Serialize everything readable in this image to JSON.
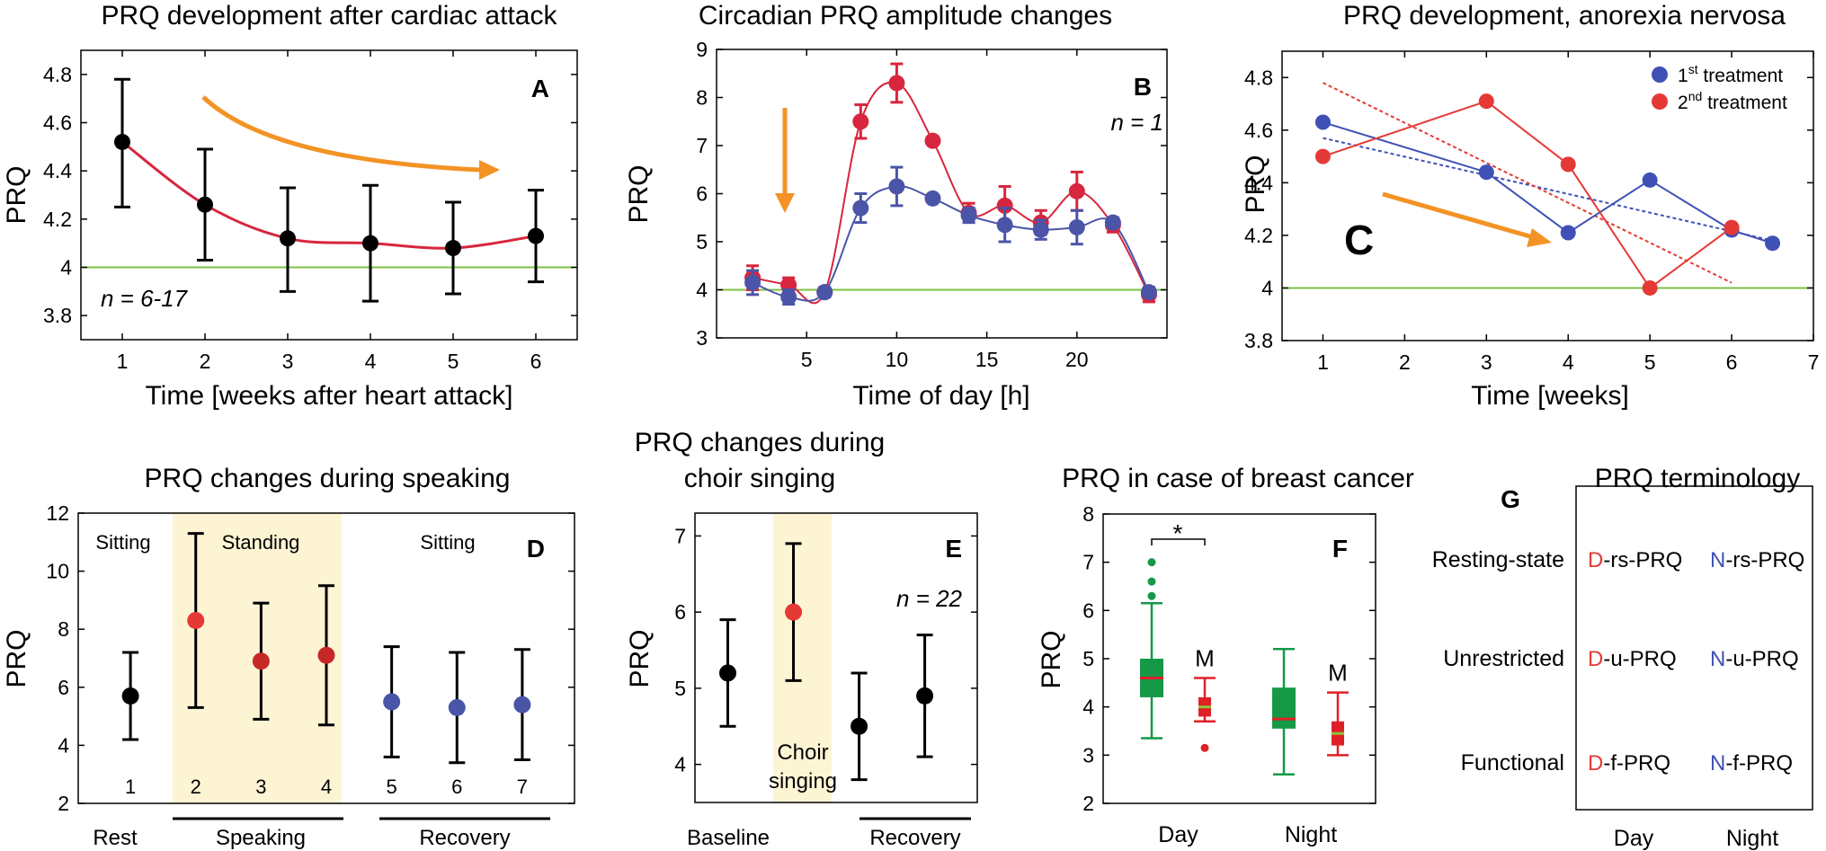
{
  "figure": {
    "title": "PRQ multi-panel figure"
  },
  "chart_data": [
    {
      "id": "A",
      "type": "line",
      "title": "PRQ development after cardiac attack",
      "panel_letter": "A",
      "xlabel": "Time [weeks after heart attack]",
      "ylabel": "PRQ",
      "xlim": [
        0.5,
        6.5
      ],
      "ylim": [
        3.7,
        4.9
      ],
      "xticks": [
        1,
        2,
        3,
        4,
        5,
        6
      ],
      "xtick_labels": [
        "1",
        "2",
        "3",
        "4",
        "5",
        "6"
      ],
      "yticks": [
        3.8,
        4,
        4.2,
        4.4,
        4.6,
        4.8
      ],
      "ytick_labels": [
        "3.8",
        "4",
        "4.2",
        "4.4",
        "4.6",
        "4.8"
      ],
      "baseline": 4,
      "x": [
        1,
        2,
        3,
        4,
        5,
        6
      ],
      "y": [
        4.52,
        4.26,
        4.12,
        4.1,
        4.08,
        4.13
      ],
      "err_low": [
        4.25,
        4.03,
        3.9,
        3.86,
        3.89,
        3.94
      ],
      "err_high": [
        4.78,
        4.49,
        4.33,
        4.34,
        4.27,
        4.32
      ],
      "annotation": "n = 6-17"
    },
    {
      "id": "B",
      "type": "line",
      "title": "Circadian PRQ amplitude changes",
      "panel_letter": "B",
      "xlabel": "Time of day [h]",
      "ylabel": "PRQ",
      "xlim": [
        0,
        25
      ],
      "ylim": [
        3,
        9
      ],
      "xticks": [
        5,
        10,
        15,
        20
      ],
      "xtick_labels": [
        "5",
        "10",
        "15",
        "20"
      ],
      "yticks": [
        3,
        4,
        5,
        6,
        7,
        8,
        9
      ],
      "ytick_labels": [
        "3",
        "4",
        "5",
        "6",
        "7",
        "8",
        "9"
      ],
      "baseline": 4,
      "annotation": "n = 1",
      "series": [
        {
          "name": "red",
          "color": "#d7263d",
          "x": [
            2,
            4,
            6,
            8,
            10,
            12,
            14,
            16,
            18,
            20,
            22,
            24
          ],
          "y": [
            4.25,
            4.1,
            3.95,
            7.5,
            8.3,
            7.1,
            5.6,
            5.75,
            5.4,
            6.05,
            5.35,
            3.9
          ],
          "err": [
            0.25,
            0.15,
            0.1,
            0.35,
            0.4,
            0,
            0.2,
            0.4,
            0.25,
            0.4,
            0.15,
            0.15
          ]
        },
        {
          "name": "blue",
          "color": "#4a55a8",
          "x": [
            2,
            4,
            6,
            8,
            10,
            12,
            14,
            16,
            18,
            20,
            22,
            24
          ],
          "y": [
            4.15,
            3.85,
            3.95,
            5.7,
            6.15,
            5.9,
            5.55,
            5.35,
            5.25,
            5.3,
            5.4,
            3.95
          ],
          "err": [
            0.25,
            0.15,
            0.1,
            0.3,
            0.4,
            0,
            0.15,
            0.35,
            0.2,
            0.35,
            0.1,
            0.1
          ]
        }
      ]
    },
    {
      "id": "C",
      "type": "line",
      "title": "PRQ development, anorexia nervosa",
      "panel_letter": "C",
      "xlabel": "Time [weeks]",
      "ylabel": "PRQ",
      "xlim": [
        0.5,
        7
      ],
      "ylim": [
        3.8,
        4.9
      ],
      "xticks": [
        1,
        2,
        3,
        4,
        5,
        6,
        7
      ],
      "xtick_labels": [
        "1",
        "2",
        "3",
        "4",
        "5",
        "6",
        "7"
      ],
      "yticks": [
        3.8,
        4,
        4.2,
        4.4,
        4.6,
        4.8
      ],
      "ytick_labels": [
        "3.8",
        "4",
        "4.2",
        "4.4",
        "4.6",
        "4.8"
      ],
      "baseline": 4,
      "legend": {
        "position": "top-right",
        "entries": [
          {
            "label": "1",
            "sup": "st",
            "rest": " treatment",
            "color": "#3f51b5"
          },
          {
            "label": "2",
            "sup": "nd",
            "rest": " treatment",
            "color": "#e53935"
          }
        ]
      },
      "series": [
        {
          "name": "1st treatment",
          "color": "#3f51b5",
          "x": [
            1,
            3,
            4,
            5,
            6,
            6.5
          ],
          "y": [
            4.63,
            4.44,
            4.21,
            4.41,
            4.22,
            4.17
          ]
        },
        {
          "name": "2nd treatment",
          "color": "#e53935",
          "x": [
            1,
            3,
            4,
            5,
            6
          ],
          "y": [
            4.5,
            4.71,
            4.47,
            4.0,
            4.23
          ]
        }
      ],
      "trendlines": [
        {
          "color": "#3f51b5",
          "x": [
            1,
            6.5
          ],
          "y": [
            4.57,
            4.18
          ]
        },
        {
          "color": "#e53935",
          "x": [
            1,
            6
          ],
          "y": [
            4.78,
            4.02
          ]
        }
      ]
    },
    {
      "id": "D",
      "type": "scatter",
      "title": "PRQ changes during speaking",
      "panel_letter": "D",
      "xlabel": "",
      "ylabel": "PRQ",
      "xlim": [
        0.2,
        7.8
      ],
      "ylim": [
        2,
        12
      ],
      "yticks": [
        2,
        4,
        6,
        8,
        10,
        12
      ],
      "ytick_labels": [
        "2",
        "4",
        "6",
        "8",
        "10",
        "12"
      ],
      "x": [
        1,
        2,
        3,
        4,
        5,
        6,
        7
      ],
      "point_labels": [
        "1",
        "2",
        "3",
        "4",
        "5",
        "6",
        "7"
      ],
      "y": [
        5.7,
        8.3,
        6.9,
        7.1,
        5.5,
        5.3,
        5.4
      ],
      "err_low": [
        4.2,
        5.3,
        4.9,
        4.7,
        3.6,
        3.4,
        3.5
      ],
      "err_high": [
        7.2,
        11.3,
        8.9,
        9.5,
        7.4,
        7.2,
        7.3
      ],
      "colors": [
        "#000000",
        "#e53935",
        "#c62828",
        "#c62828",
        "#4a55a8",
        "#4a55a8",
        "#4a55a8"
      ],
      "region_labels": [
        "Sitting",
        "Standing",
        "Sitting"
      ],
      "group_labels": [
        "Rest",
        "Speaking",
        "Recovery"
      ]
    },
    {
      "id": "E",
      "type": "scatter",
      "title_line1": "PRQ changes during",
      "title_line2": "choir singing",
      "panel_letter": "E",
      "xlabel": "",
      "ylabel": "PRQ",
      "xlim": [
        0.5,
        4.8
      ],
      "ylim": [
        3.5,
        7.3
      ],
      "yticks": [
        4,
        5,
        6,
        7
      ],
      "ytick_labels": [
        "4",
        "5",
        "6",
        "7"
      ],
      "x": [
        1,
        2,
        3,
        4
      ],
      "y": [
        5.2,
        6.0,
        4.5,
        4.9
      ],
      "err_low": [
        4.5,
        5.1,
        3.8,
        4.1
      ],
      "err_high": [
        5.9,
        6.9,
        5.2,
        5.7
      ],
      "colors": [
        "#000000",
        "#e53935",
        "#000000",
        "#000000"
      ],
      "annotation": "n = 22",
      "highlight_line1": "Choir",
      "highlight_line2": "singing",
      "group_labels": [
        "Baseline",
        "Recovery"
      ]
    },
    {
      "id": "F",
      "type": "box",
      "title": "PRQ in case of breast cancer",
      "panel_letter": "F",
      "xlabel": "",
      "ylabel": "PRQ",
      "ylim": [
        2,
        8
      ],
      "yticks": [
        2,
        3,
        4,
        5,
        6,
        7,
        8
      ],
      "ytick_labels": [
        "2",
        "3",
        "4",
        "5",
        "6",
        "7",
        "8"
      ],
      "categories": [
        "Day",
        "Night"
      ],
      "significance": "*",
      "boxes": [
        {
          "group": "Day",
          "color": "#159947",
          "whisker_low": 3.35,
          "q1": 4.2,
          "median": 4.6,
          "q3": 5.0,
          "whisker_high": 6.15,
          "outliers": [
            6.3,
            6.6,
            7.0
          ],
          "label": ""
        },
        {
          "group": "Day",
          "color": "#e02027",
          "whisker_low": 3.7,
          "q1": 3.8,
          "median": 4.0,
          "q3": 4.2,
          "whisker_high": 4.6,
          "outliers": [
            3.15
          ],
          "label": "M"
        },
        {
          "group": "Night",
          "color": "#159947",
          "whisker_low": 2.6,
          "q1": 3.55,
          "median": 3.75,
          "q3": 4.4,
          "whisker_high": 5.2,
          "outliers": [],
          "label": ""
        },
        {
          "group": "Night",
          "color": "#e02027",
          "whisker_low": 3.0,
          "q1": 3.2,
          "median": 3.45,
          "q3": 3.7,
          "whisker_high": 4.3,
          "outliers": [],
          "label": "M"
        }
      ]
    }
  ],
  "terminology": {
    "title": "PRQ terminology",
    "panel_letter": "G",
    "day_label": "Day",
    "night_label": "Night",
    "day_color": "#e53935",
    "night_color": "#3f51b5",
    "rows": [
      {
        "label": "Resting-state",
        "day_prefix": "D",
        "day_rest": "-rs-PRQ",
        "night_prefix": "N",
        "night_rest": "-rs-PRQ"
      },
      {
        "label": "Unrestricted",
        "day_prefix": "D",
        "day_rest": "-u-PRQ",
        "night_prefix": "N",
        "night_rest": "-u-PRQ"
      },
      {
        "label": "Functional",
        "day_prefix": "D",
        "day_rest": "-f-PRQ",
        "night_prefix": "N",
        "night_rest": "-f-PRQ"
      }
    ]
  }
}
